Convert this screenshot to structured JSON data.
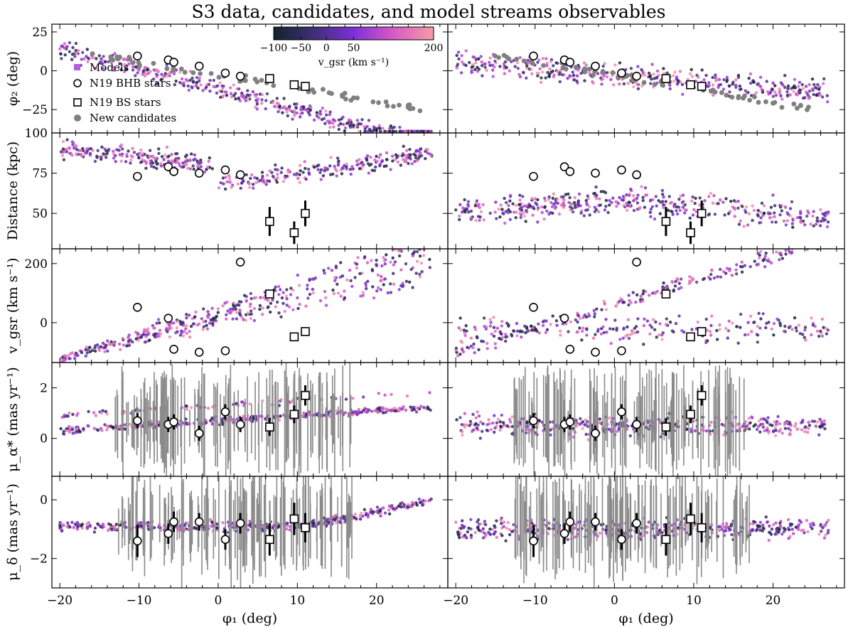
{
  "chart_data": {
    "type": "scatter",
    "title": "S3 data, candidates, and model streams observables",
    "xlabel": "φ₁ (deg)",
    "xlim": [
      -21,
      29
    ],
    "xticks": [
      -20,
      -10,
      0,
      10,
      20
    ],
    "colorbar": {
      "label": "v_gsr (km s⁻¹)",
      "range": [
        -100,
        200
      ],
      "tick_labels": [
        "−100",
        "−50",
        "0",
        "50",
        "200"
      ],
      "tick_values": [
        -100,
        -50,
        0,
        50,
        200
      ],
      "colors": [
        "#12222e",
        "#3e2f73",
        "#7d2fd6",
        "#d65bc4",
        "#f49ca4"
      ]
    },
    "legend": {
      "placement": "top-left",
      "entries": [
        "Models",
        "N19 BHB stars",
        "N19 BS stars",
        "New candidates"
      ]
    },
    "rows": [
      {
        "key": "phi2",
        "ylabel": "φ₂ (deg)",
        "ylim": [
          -40,
          30
        ],
        "yticks": [
          -25,
          0,
          25
        ],
        "yticklabels": [
          "−25",
          "0",
          "25"
        ]
      },
      {
        "key": "dist",
        "ylabel": "Distance (kpc)",
        "ylim": [
          28,
          100
        ],
        "yticks": [
          50,
          75,
          100
        ],
        "yticklabels": [
          "50",
          "75",
          "100"
        ]
      },
      {
        "key": "vgsr",
        "ylabel": "v_gsr (km s⁻¹)",
        "ylim": [
          -135,
          250
        ],
        "yticks": [
          0,
          200
        ],
        "yticklabels": [
          "0",
          "200"
        ]
      },
      {
        "key": "pmra",
        "ylabel": "μ_α* (mas yr⁻¹)",
        "ylim": [
          -1.5,
          3.0
        ],
        "yticks": [
          0,
          2
        ],
        "yticklabels": [
          "0",
          "2"
        ]
      },
      {
        "key": "pmdec",
        "ylabel": "μ_δ (mas yr⁻¹)",
        "ylim": [
          -3.0,
          0.8
        ],
        "yticks": [
          -2,
          0
        ],
        "yticklabels": [
          "−2",
          "0"
        ]
      }
    ],
    "series": [
      {
        "name": "N19 BHB stars",
        "marker": "open-circle",
        "phi1": [
          -10.2,
          -6.3,
          -5.6,
          -2.4,
          0.9,
          2.8
        ],
        "phi2": [
          9.5,
          7.0,
          5.5,
          3.0,
          -1.5,
          -3.5
        ],
        "dist": [
          73,
          79,
          76,
          75,
          77,
          74
        ],
        "dist_err": [
          2.5,
          2.5,
          2.5,
          2.5,
          2.5,
          2.5
        ],
        "vgsr": [
          52,
          15,
          -90,
          -100,
          -95,
          205
        ],
        "pmra": [
          0.7,
          0.55,
          0.65,
          0.2,
          1.05,
          0.55
        ],
        "pmra_err": [
          0.3,
          0.3,
          0.3,
          0.3,
          0.3,
          0.3
        ],
        "pmdec": [
          -1.4,
          -1.15,
          -0.75,
          -0.75,
          -1.35,
          -0.8
        ],
        "pmdec_err": [
          0.55,
          0.35,
          0.35,
          0.3,
          0.35,
          0.35
        ]
      },
      {
        "name": "N19 BS stars",
        "marker": "open-square",
        "phi1": [
          6.5,
          9.6,
          11.0
        ],
        "phi2": [
          -5.0,
          -9.0,
          -10.0
        ],
        "dist": [
          45,
          38,
          50
        ],
        "dist_err": [
          9,
          7,
          8
        ],
        "vgsr": [
          97,
          -48,
          -30
        ],
        "pmra": [
          0.45,
          0.95,
          1.7
        ],
        "pmra_err": [
          0.35,
          0.35,
          0.4
        ],
        "pmdec": [
          -1.35,
          -0.65,
          -0.95
        ],
        "pmdec_err": [
          0.55,
          0.55,
          0.5
        ]
      }
    ],
    "panels": [
      "left: model stream colored by v_gsr",
      "right: alternative model stream colored by v_gsr"
    ]
  }
}
